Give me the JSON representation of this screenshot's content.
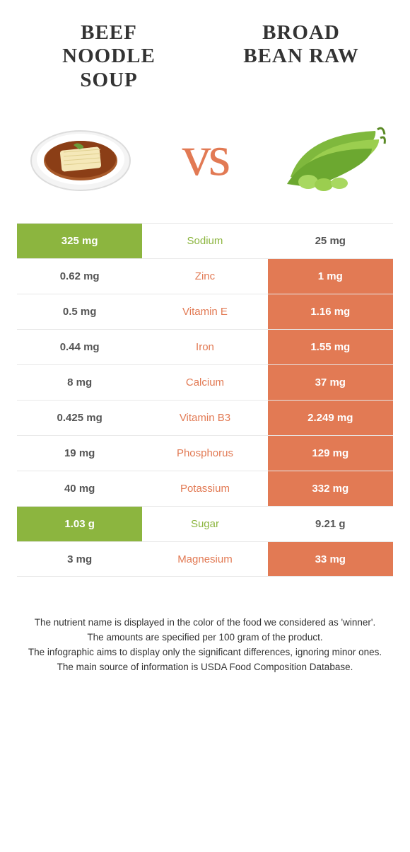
{
  "left_food": "Beef noodle soup",
  "right_food": "Broad bean raw",
  "vs_label": "vs",
  "colors": {
    "left": "#8cb53f",
    "right": "#e27a54",
    "row_border": "#e8e8e8",
    "text": "#333333"
  },
  "rows": [
    {
      "nutrient": "Sodium",
      "left": "325 mg",
      "right": "25 mg",
      "winner": "left"
    },
    {
      "nutrient": "Zinc",
      "left": "0.62 mg",
      "right": "1 mg",
      "winner": "right"
    },
    {
      "nutrient": "Vitamin E",
      "left": "0.5 mg",
      "right": "1.16 mg",
      "winner": "right"
    },
    {
      "nutrient": "Iron",
      "left": "0.44 mg",
      "right": "1.55 mg",
      "winner": "right"
    },
    {
      "nutrient": "Calcium",
      "left": "8 mg",
      "right": "37 mg",
      "winner": "right"
    },
    {
      "nutrient": "Vitamin B3",
      "left": "0.425 mg",
      "right": "2.249 mg",
      "winner": "right"
    },
    {
      "nutrient": "Phosphorus",
      "left": "19 mg",
      "right": "129 mg",
      "winner": "right"
    },
    {
      "nutrient": "Potassium",
      "left": "40 mg",
      "right": "332 mg",
      "winner": "right"
    },
    {
      "nutrient": "Sugar",
      "left": "1.03 g",
      "right": "9.21 g",
      "winner": "left"
    },
    {
      "nutrient": "Magnesium",
      "left": "3 mg",
      "right": "33 mg",
      "winner": "right"
    }
  ],
  "footer_lines": [
    "The nutrient name is displayed in the color of the food we considered as 'winner'.",
    "The amounts are specified per 100 gram of the product.",
    "The infographic aims to display only the significant differences, ignoring minor ones.",
    "The main source of information is USDA Food Composition Database."
  ]
}
